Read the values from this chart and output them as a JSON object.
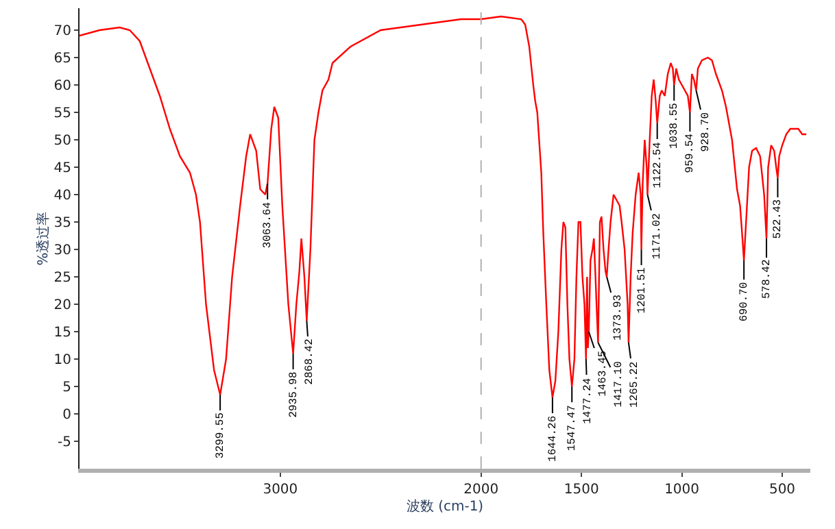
{
  "chart_data": {
    "type": "line",
    "xlabel": "波数 (cm-1)",
    "ylabel": "%透过率",
    "xlim": [
      4000,
      360
    ],
    "xticks": [
      3000,
      2000,
      1500,
      1000,
      500
    ],
    "ylim": [
      -10,
      74
    ],
    "yticks": [
      -5,
      0,
      5,
      10,
      15,
      20,
      25,
      30,
      35,
      40,
      45,
      50,
      55,
      60,
      65,
      70
    ],
    "ref_lines": [
      {
        "axis": "x",
        "value": 2000,
        "color": "#b0b0b0",
        "line_style": "dashed"
      }
    ],
    "marker": "none",
    "line_style": "solid",
    "series": [
      {
        "color": "#ff0000",
        "x": [
          4000,
          3900,
          3800,
          3750,
          3700,
          3650,
          3600,
          3550,
          3500,
          3450,
          3420,
          3400,
          3370,
          3330,
          3299.55,
          3270,
          3240,
          3200,
          3170,
          3150,
          3120,
          3100,
          3075,
          3063.64,
          3045,
          3030,
          3010,
          2990,
          2960,
          2935.98,
          2920,
          2905,
          2895,
          2880,
          2868.42,
          2850,
          2830,
          2810,
          2790,
          2760,
          2740,
          2650,
          2500,
          2300,
          2100,
          2000,
          1900,
          1800,
          1780,
          1760,
          1740,
          1730,
          1720,
          1700,
          1690,
          1675,
          1660,
          1644.26,
          1630,
          1615,
          1600,
          1590,
          1580,
          1570,
          1560,
          1547.47,
          1535,
          1525,
          1515,
          1505,
          1495,
          1485,
          1477.24,
          1472,
          1468,
          1463.45,
          1455,
          1445,
          1438,
          1430,
          1425,
          1417.1,
          1408,
          1400,
          1390,
          1380,
          1373.93,
          1365,
          1355,
          1340,
          1325,
          1310,
          1300,
          1285,
          1270,
          1265.22,
          1255,
          1245,
          1230,
          1215,
          1205,
          1201.51,
          1195,
          1185,
          1175,
          1171.02,
          1160,
          1150,
          1140,
          1130,
          1122.54,
          1110,
          1100,
          1085,
          1070,
          1055,
          1045,
          1038.55,
          1028,
          1015,
          1000,
          970,
          959.54,
          950,
          940,
          928.7,
          920,
          900,
          870,
          850,
          830,
          800,
          780,
          750,
          725,
          710,
          700,
          690.7,
          680,
          665,
          650,
          630,
          610,
          590,
          578.42,
          570,
          555,
          540,
          530,
          522.43,
          515,
          500,
          480,
          460,
          440,
          420,
          400,
          380
        ],
        "values": [
          69,
          70,
          70.5,
          70,
          68,
          63,
          58,
          52,
          47,
          44,
          40,
          35,
          20,
          8,
          3.5,
          10,
          25,
          38,
          47,
          51,
          48,
          41,
          40,
          42,
          52,
          56,
          54,
          38,
          20,
          11,
          20,
          26,
          32,
          25,
          17,
          30,
          50,
          55,
          59,
          61,
          64,
          67,
          70,
          71,
          72,
          72,
          72.5,
          72,
          71,
          67,
          60,
          57,
          55,
          44,
          33,
          20,
          8,
          3,
          6,
          15,
          30,
          35,
          34,
          20,
          10,
          5,
          10,
          25,
          35,
          35,
          25,
          20,
          10,
          25,
          12,
          15,
          28,
          30,
          32,
          25,
          20,
          13,
          35,
          36,
          30,
          26,
          25,
          30,
          35,
          40,
          39,
          38,
          35,
          30,
          20,
          13,
          25,
          33,
          40,
          44,
          40,
          30,
          42,
          50,
          45,
          40,
          50,
          58,
          61,
          57,
          53,
          58,
          59,
          58,
          62,
          64,
          63,
          60,
          63,
          61,
          60,
          58,
          55,
          62,
          61,
          59,
          63,
          64.5,
          65,
          64.5,
          62,
          59,
          56,
          50,
          41,
          38,
          33,
          28,
          35,
          45,
          48,
          48.5,
          47,
          40,
          32,
          45,
          49,
          48,
          45,
          43,
          47,
          49,
          51,
          52,
          52,
          52,
          51,
          51
        ]
      }
    ],
    "annotations": [
      {
        "text": "3299.55",
        "x": 3299.55,
        "y": 3.5
      },
      {
        "text": "3063.64",
        "x": 3063.64,
        "y": 42
      },
      {
        "text": "2935.98",
        "x": 2935.98,
        "y": 11
      },
      {
        "text": "2868.42",
        "x": 2868.42,
        "y": 17
      },
      {
        "text": "1644.26",
        "x": 1644.26,
        "y": 3
      },
      {
        "text": "1547.47",
        "x": 1547.47,
        "y": 5
      },
      {
        "text": "1477.24",
        "x": 1477.24,
        "y": 10
      },
      {
        "text": "1463.45",
        "x": 1463.45,
        "y": 15
      },
      {
        "text": "1417.10",
        "x": 1417.1,
        "y": 13
      },
      {
        "text": "1373.93",
        "x": 1373.93,
        "y": 25
      },
      {
        "text": "1265.22",
        "x": 1265.22,
        "y": 13
      },
      {
        "text": "1201.51",
        "x": 1201.51,
        "y": 30
      },
      {
        "text": "1171.02",
        "x": 1171.02,
        "y": 40
      },
      {
        "text": "1122.54",
        "x": 1122.54,
        "y": 53
      },
      {
        "text": "1038.55",
        "x": 1038.55,
        "y": 60
      },
      {
        "text": "959.54",
        "x": 959.54,
        "y": 55
      },
      {
        "text": "928.70",
        "x": 928.7,
        "y": 59
      },
      {
        "text": "690.70",
        "x": 690.7,
        "y": 28
      },
      {
        "text": "578.42",
        "x": 578.42,
        "y": 32
      },
      {
        "text": "522.43",
        "x": 522.43,
        "y": 43
      }
    ]
  }
}
